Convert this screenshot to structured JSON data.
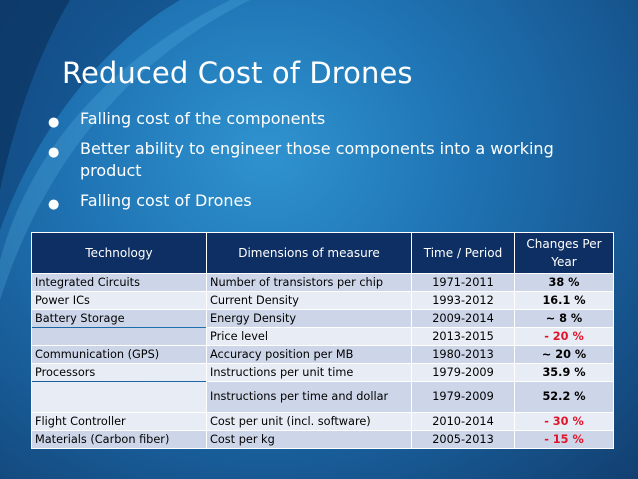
{
  "slide": {
    "title": "Reduced Cost of Drones",
    "bullets": [
      "Falling cost of the components",
      "Better ability to engineer those components into a working product",
      "Falling cost of Drones"
    ]
  },
  "table": {
    "headers": {
      "technology": "Technology",
      "dimension": "Dimensions of measure",
      "period": "Time / Period",
      "change": "Changes Per Year"
    },
    "rows": [
      {
        "technology": "Integrated Circuits",
        "dimension": "Number of transistors per chip",
        "period": "1971-2011",
        "change": "38 %"
      },
      {
        "technology": "Power ICs",
        "dimension": "Current Density",
        "period": "1993-2012",
        "change": "16.1 %"
      },
      {
        "technology": "Battery Storage",
        "dimension": "Energy Density",
        "period": "2009-2014",
        "change": "~ 8 %"
      },
      {
        "technology": "",
        "dimension": "Price level",
        "period": "2013-2015",
        "change": "- 20 %"
      },
      {
        "technology": "Communication (GPS)",
        "dimension": "Accuracy position per MB",
        "period": "1980-2013",
        "change": "~ 20 %"
      },
      {
        "technology": "Processors",
        "dimension": "Instructions per unit time",
        "period": "1979-2009",
        "change": "35.9 %"
      },
      {
        "technology": "",
        "dimension": "Instructions per time and dollar",
        "period": "1979-2009",
        "change": "52.2 %"
      },
      {
        "technology": "Flight Controller",
        "dimension": "Cost per unit (incl. software)",
        "period": "2010-2014",
        "change": "- 30 %"
      },
      {
        "technology": "Materials (Carbon fiber)",
        "dimension": "Cost per kg",
        "period": "2005-2013",
        "change": "- 15 %"
      }
    ]
  },
  "colors": {
    "negative": "#e0142a",
    "header_bg": "#0e2f63"
  }
}
